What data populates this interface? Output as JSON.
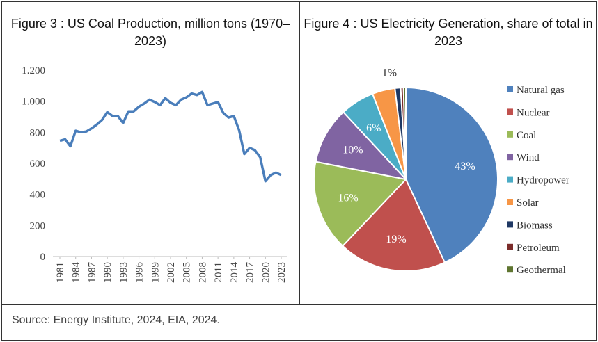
{
  "chart_data": [
    {
      "type": "line",
      "title": "Figure 3 : US Coal Production, million tons (1970–2023)",
      "x": [
        1981,
        1982,
        1983,
        1984,
        1985,
        1986,
        1987,
        1988,
        1989,
        1990,
        1991,
        1992,
        1993,
        1994,
        1995,
        1996,
        1997,
        1998,
        1999,
        2000,
        2001,
        2002,
        2003,
        2004,
        2005,
        2006,
        2007,
        2008,
        2009,
        2010,
        2011,
        2012,
        2013,
        2014,
        2015,
        2016,
        2017,
        2018,
        2019,
        2020,
        2021,
        2022,
        2023
      ],
      "values": [
        745,
        755,
        710,
        810,
        800,
        805,
        825,
        850,
        880,
        930,
        905,
        905,
        860,
        935,
        935,
        965,
        985,
        1010,
        995,
        975,
        1020,
        990,
        975,
        1010,
        1025,
        1050,
        1040,
        1060,
        975,
        985,
        995,
        925,
        895,
        905,
        815,
        660,
        700,
        685,
        640,
        485,
        525,
        540,
        525
      ],
      "color": "#4a7ebb",
      "xlim": [
        1981,
        2023
      ],
      "xticks": [
        1981,
        1984,
        1987,
        1990,
        1993,
        1996,
        1999,
        2002,
        2005,
        2008,
        2011,
        2014,
        2017,
        2020,
        2023
      ],
      "ylim": [
        0,
        1200
      ],
      "yticks": [
        0,
        200,
        400,
        600,
        800,
        {
          "value": 1000,
          "label": "1.000"
        },
        {
          "value": 1200,
          "label": "1.200"
        }
      ],
      "grid": false
    },
    {
      "type": "pie",
      "title": "Figure 4 : US Electricity Generation, share of total in 2023",
      "categories": [
        "Natural gas",
        "Nuclear",
        "Coal",
        "Wind",
        "Hydropower",
        "Solar",
        "Biomass",
        "Petroleum",
        "Geothermal"
      ],
      "values": [
        43,
        19,
        16,
        10,
        6,
        4,
        1,
        0.5,
        0.4
      ],
      "value_labels": [
        "43%",
        "19%",
        "16%",
        "10%",
        "6%",
        null,
        "1%",
        null,
        null
      ],
      "colors": [
        "#4f81bd",
        "#c0504d",
        "#9bbb59",
        "#8064a2",
        "#4bacc6",
        "#f79646",
        "#1f3864",
        "#7b2c2a",
        "#5f7530"
      ],
      "legend": "right"
    }
  ],
  "source": "Source: Energy Institute, 2024, EIA, 2024."
}
